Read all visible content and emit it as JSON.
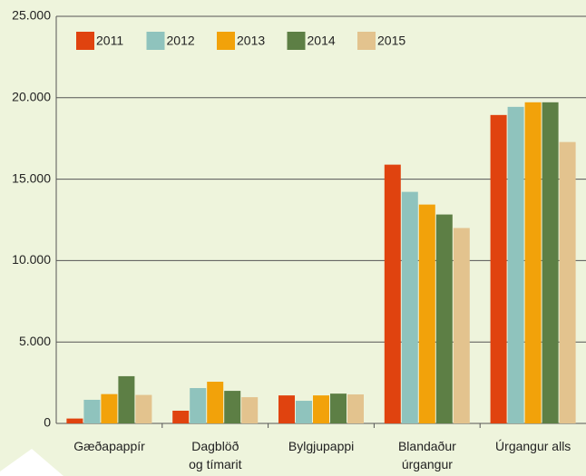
{
  "chart_data": {
    "type": "bar",
    "categories": [
      "Gæðapappír",
      "Dagblöð\nog tímarit",
      "Bylgjupappi",
      "Blandaður\núrgangur",
      "Úrgangur alls"
    ],
    "series": [
      {
        "name": "2011",
        "color": "#e0430f",
        "values": [
          300,
          780,
          1720,
          15890,
          18940
        ]
      },
      {
        "name": "2012",
        "color": "#8fc3bd",
        "values": [
          1450,
          2170,
          1390,
          14220,
          19440
        ]
      },
      {
        "name": "2013",
        "color": "#f2a20a",
        "values": [
          1800,
          2560,
          1720,
          13440,
          19720
        ]
      },
      {
        "name": "2014",
        "color": "#5d7f45",
        "values": [
          2900,
          2000,
          1830,
          12830,
          19720
        ]
      },
      {
        "name": "2015",
        "color": "#e3c38e",
        "values": [
          1750,
          1610,
          1780,
          12000,
          17280
        ]
      }
    ],
    "ylim": [
      0,
      25000
    ],
    "yticks": [
      0,
      {
        "value": 5000,
        "label": "5.000"
      },
      {
        "value": 10000,
        "label": "10.000"
      },
      {
        "value": 15000,
        "label": "15.000"
      },
      {
        "value": 20000,
        "label": "20.000"
      },
      {
        "value": 25000,
        "label": "25.000"
      }
    ],
    "grid": true,
    "legend": "top-left"
  }
}
